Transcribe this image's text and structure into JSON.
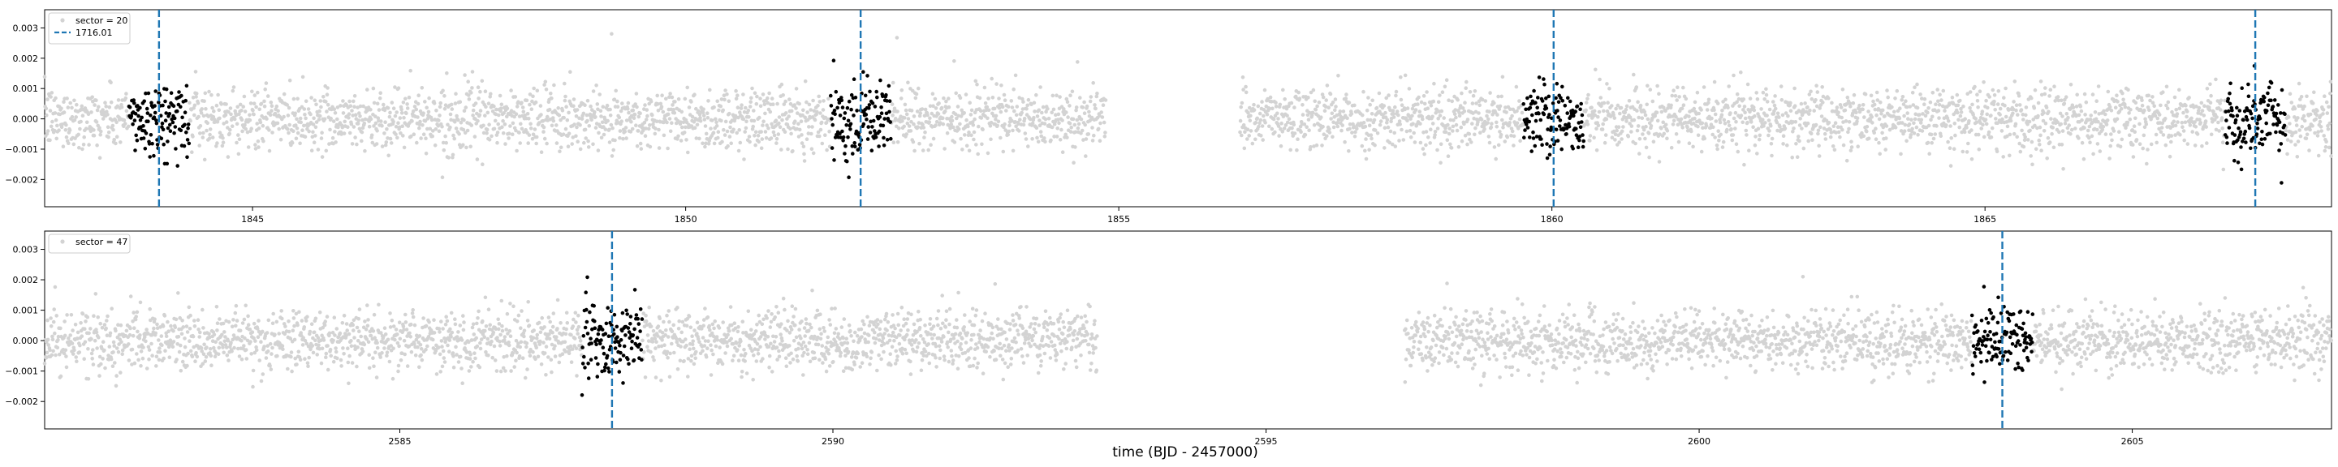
{
  "figure": {
    "xlabel": "time (BJD - 2457000)"
  },
  "chart_data": [
    {
      "type": "scatter",
      "panel": "top",
      "xlim": [
        1842.6,
        1869.0
      ],
      "ylim": [
        -0.0029,
        0.0036
      ],
      "xticks": [
        1845,
        1850,
        1855,
        1860,
        1865
      ],
      "xtick_labels": [
        "1845",
        "1850",
        "1855",
        "1860",
        "1865"
      ],
      "yticks": [
        -0.002,
        -0.001,
        0.0,
        0.001,
        0.002,
        0.003
      ],
      "ytick_labels": [
        "−0.002",
        "−0.001",
        "0.000",
        "0.001",
        "0.002",
        "0.003"
      ],
      "legend_position": "top-left",
      "legend": [
        "sector = 20",
        "1716.01"
      ],
      "colors": {
        "baseline": "#d3d3d3",
        "in_transit": "#000000",
        "transit_line": "#1f77b4"
      },
      "baseline_segments": [
        [
          1842.6,
          1854.85
        ],
        [
          1856.4,
          1869.0
        ]
      ],
      "baseline_scatter": 0.0005,
      "transit_times": [
        1843.92,
        1852.02,
        1860.02,
        1868.12
      ],
      "transit_window": 0.35,
      "transit_scatter": 0.0006
    },
    {
      "type": "scatter",
      "panel": "bottom",
      "xlim": [
        2580.9,
        2607.3
      ],
      "ylim": [
        -0.0029,
        0.0036
      ],
      "xticks": [
        2585,
        2590,
        2595,
        2600,
        2605
      ],
      "xtick_labels": [
        "2585",
        "2590",
        "2595",
        "2600",
        "2605"
      ],
      "yticks": [
        -0.002,
        -0.001,
        0.0,
        0.001,
        0.002,
        0.003
      ],
      "ytick_labels": [
        "−0.002",
        "−0.001",
        "0.000",
        "0.001",
        "0.002",
        "0.003"
      ],
      "legend_position": "top-left",
      "legend": [
        "sector = 47"
      ],
      "colors": {
        "baseline": "#d3d3d3",
        "in_transit": "#000000",
        "transit_line": "#1f77b4"
      },
      "baseline_segments": [
        [
          2580.9,
          2593.05
        ],
        [
          2596.6,
          2607.3
        ]
      ],
      "baseline_scatter": 0.0005,
      "transit_times": [
        2587.45,
        2603.5
      ],
      "transit_window": 0.35,
      "transit_scatter": 0.0006
    }
  ]
}
